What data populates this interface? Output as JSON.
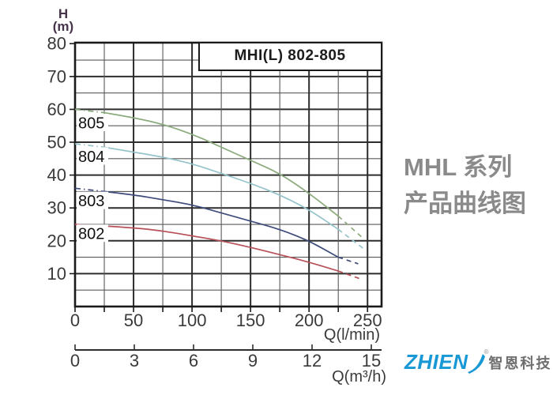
{
  "chart": {
    "title": "MHI(L) 802-805",
    "grid_color_major": "#2d2d2d",
    "grid_color_minor": "#5a5a5a",
    "border_color": "#1a1a1a",
    "tick_text_color": "#3a3a3a",
    "y_axis": {
      "label_line1": "H",
      "label_line2": "(m)",
      "ticks": [
        80,
        70,
        60,
        50,
        40,
        30,
        20,
        10
      ]
    },
    "x_axis_lmin": {
      "label": "Q(l/min)",
      "ticks": [
        0,
        50,
        100,
        150,
        200,
        250
      ],
      "minor_step": 25
    },
    "x_axis_m3h": {
      "label": "Q(m³/h)",
      "ticks": [
        0,
        3,
        6,
        9,
        12,
        15
      ]
    }
  },
  "chart_data": {
    "type": "line",
    "title": "MHI(L) 802-805",
    "ylabel": "H (m)",
    "xlabel_primary": "Q (l/min)",
    "xlabel_secondary": "Q (m³/h)",
    "xlim": [
      0,
      262
    ],
    "ylim": [
      0,
      80
    ],
    "grid": "on",
    "series": [
      {
        "name": "805",
        "color": "#8cab7d",
        "label_h": 56,
        "points": [
          [
            0,
            60
          ],
          [
            25,
            59
          ],
          [
            50,
            57.5
          ],
          [
            75,
            55.5
          ],
          [
            100,
            52.5
          ],
          [
            125,
            48.5
          ],
          [
            150,
            44.5
          ],
          [
            175,
            40.5
          ],
          [
            200,
            34.5
          ],
          [
            225,
            27.5
          ],
          [
            247,
            20.5
          ]
        ]
      },
      {
        "name": "804",
        "color": "#96c3ca",
        "label_h": 45.8,
        "points": [
          [
            0,
            49.5
          ],
          [
            25,
            48.5
          ],
          [
            50,
            47
          ],
          [
            75,
            45.5
          ],
          [
            100,
            43.5
          ],
          [
            125,
            40.5
          ],
          [
            150,
            37.5
          ],
          [
            175,
            34
          ],
          [
            200,
            29.5
          ],
          [
            225,
            23.5
          ],
          [
            247,
            17.5
          ]
        ]
      },
      {
        "name": "803",
        "color": "#3e4c7c",
        "label_h": 32.3,
        "points": [
          [
            0,
            36
          ],
          [
            25,
            35
          ],
          [
            50,
            34
          ],
          [
            75,
            32.5
          ],
          [
            100,
            31
          ],
          [
            125,
            28.5
          ],
          [
            150,
            26
          ],
          [
            175,
            23.5
          ],
          [
            200,
            20
          ],
          [
            225,
            15
          ],
          [
            242,
            13
          ]
        ]
      },
      {
        "name": "802",
        "color": "#b8505a",
        "label_h": 22.3,
        "points": [
          [
            0,
            25
          ],
          [
            25,
            24.5
          ],
          [
            50,
            24
          ],
          [
            75,
            23
          ],
          [
            100,
            21.5
          ],
          [
            125,
            20
          ],
          [
            150,
            18
          ],
          [
            175,
            15.8
          ],
          [
            200,
            13.5
          ],
          [
            225,
            10.8
          ],
          [
            243,
            8.5
          ]
        ]
      }
    ]
  },
  "side_text": {
    "line1": "MHL 系列",
    "line2": "产品曲线图",
    "color": "#8a8a8a"
  },
  "logo": {
    "brand": "ZHIEN",
    "reg": "®",
    "cn": "智恩科技",
    "brand_color": "#1899d6",
    "cn_color": "#6f6f6f"
  }
}
